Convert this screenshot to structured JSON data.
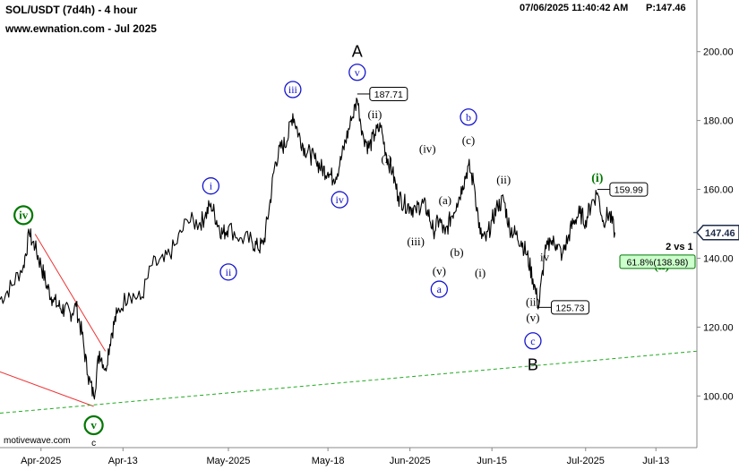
{
  "header": {
    "symbol": "SOL/USDT (7d4h) - 4 hour",
    "site": "www.ewnation.com   - Jul 2025",
    "timestamp": "07/06/2025 11:40:42 AM",
    "price_label": "P:147.46"
  },
  "watermark": "motivewave.com",
  "chart_data": {
    "type": "line",
    "title": "SOL/USDT (7d4h) - 4 hour",
    "xlabel": "",
    "ylabel": "",
    "ylim": [
      85,
      215
    ],
    "xlim": [
      "2025-03-23",
      "2025-07-20"
    ],
    "x_ticks": [
      {
        "date": "2025-03-30",
        "label": "Apr-2025"
      },
      {
        "date": "2025-04-13",
        "label": "Apr-13"
      },
      {
        "date": "2025-05-01",
        "label": "May-2025"
      },
      {
        "date": "2025-05-18",
        "label": "May-18"
      },
      {
        "date": "2025-06-01",
        "label": "Jun-2025"
      },
      {
        "date": "2025-06-15",
        "label": "Jun-15"
      },
      {
        "date": "2025-07-01",
        "label": "Jul-2025"
      },
      {
        "date": "2025-07-13",
        "label": "Jul-13"
      }
    ],
    "y_ticks": [
      100,
      120,
      140,
      160,
      180,
      200
    ],
    "y_tick_labels": [
      "100.00",
      "120.00",
      "140.00",
      "160.00",
      "180.00",
      "200.00"
    ],
    "current_price": 147.46,
    "current_price_label": "147.46",
    "series": [
      {
        "color": "#000000",
        "points": [
          [
            "2025-03-23",
            128
          ],
          [
            "2025-03-25",
            132
          ],
          [
            "2025-03-27",
            138
          ],
          [
            "2025-03-28",
            147
          ],
          [
            "2025-03-29",
            143
          ],
          [
            "2025-03-30",
            138
          ],
          [
            "2025-03-31",
            132
          ],
          [
            "2025-04-01",
            128
          ],
          [
            "2025-04-02",
            126
          ],
          [
            "2025-04-03",
            125
          ],
          [
            "2025-04-04",
            124
          ],
          [
            "2025-04-05",
            126
          ],
          [
            "2025-04-06",
            118
          ],
          [
            "2025-04-07",
            106
          ],
          [
            "2025-04-08",
            100
          ],
          [
            "2025-04-09",
            113
          ],
          [
            "2025-04-10",
            108
          ],
          [
            "2025-04-11",
            118
          ],
          [
            "2025-04-12",
            124
          ],
          [
            "2025-04-14",
            130
          ],
          [
            "2025-04-16",
            128
          ],
          [
            "2025-04-18",
            138
          ],
          [
            "2025-04-20",
            139
          ],
          [
            "2025-04-22",
            144
          ],
          [
            "2025-04-24",
            151
          ],
          [
            "2025-04-26",
            150
          ],
          [
            "2025-04-27",
            152
          ],
          [
            "2025-04-28",
            156
          ],
          [
            "2025-04-29",
            151
          ],
          [
            "2025-04-30",
            147
          ],
          [
            "2025-05-01",
            149
          ],
          [
            "2025-05-03",
            146
          ],
          [
            "2025-05-05",
            145
          ],
          [
            "2025-05-06",
            143
          ],
          [
            "2025-05-07",
            144
          ],
          [
            "2025-05-08",
            155
          ],
          [
            "2025-05-09",
            168
          ],
          [
            "2025-05-10",
            172
          ],
          [
            "2025-05-11",
            174
          ],
          [
            "2025-05-12",
            182
          ],
          [
            "2025-05-13",
            176
          ],
          [
            "2025-05-14",
            172
          ],
          [
            "2025-05-15",
            170
          ],
          [
            "2025-05-16",
            168
          ],
          [
            "2025-05-17",
            166
          ],
          [
            "2025-05-18",
            165
          ],
          [
            "2025-05-19",
            163
          ],
          [
            "2025-05-20",
            167
          ],
          [
            "2025-05-21",
            174
          ],
          [
            "2025-05-22",
            180
          ],
          [
            "2025-05-23",
            186
          ],
          [
            "2025-05-24",
            176
          ],
          [
            "2025-05-25",
            172
          ],
          [
            "2025-05-26",
            176
          ],
          [
            "2025-05-27",
            178
          ],
          [
            "2025-05-28",
            170
          ],
          [
            "2025-05-29",
            165
          ],
          [
            "2025-05-30",
            158
          ],
          [
            "2025-05-31",
            156
          ],
          [
            "2025-06-01",
            155
          ],
          [
            "2025-06-02",
            154
          ],
          [
            "2025-06-03",
            156
          ],
          [
            "2025-06-04",
            154
          ],
          [
            "2025-06-05",
            148
          ],
          [
            "2025-06-06",
            151
          ],
          [
            "2025-06-07",
            147
          ],
          [
            "2025-06-08",
            152
          ],
          [
            "2025-06-09",
            156
          ],
          [
            "2025-06-10",
            161
          ],
          [
            "2025-06-11",
            167
          ],
          [
            "2025-06-12",
            161
          ],
          [
            "2025-06-13",
            147
          ],
          [
            "2025-06-14",
            145
          ],
          [
            "2025-06-15",
            151
          ],
          [
            "2025-06-16",
            155
          ],
          [
            "2025-06-17",
            157
          ],
          [
            "2025-06-18",
            149
          ],
          [
            "2025-06-19",
            147
          ],
          [
            "2025-06-20",
            145
          ],
          [
            "2025-06-21",
            141
          ],
          [
            "2025-06-22",
            134
          ],
          [
            "2025-06-23",
            126
          ],
          [
            "2025-06-24",
            141
          ],
          [
            "2025-06-25",
            145
          ],
          [
            "2025-06-26",
            144
          ],
          [
            "2025-06-27",
            141
          ],
          [
            "2025-06-28",
            146
          ],
          [
            "2025-06-29",
            151
          ],
          [
            "2025-06-30",
            153
          ],
          [
            "2025-07-01",
            151
          ],
          [
            "2025-07-02",
            156
          ],
          [
            "2025-07-03",
            159
          ],
          [
            "2025-07-04",
            151
          ],
          [
            "2025-07-05",
            153
          ],
          [
            "2025-07-06",
            147.5
          ]
        ]
      }
    ],
    "lines": [
      {
        "name": "trendline",
        "color": "#ee3333",
        "style": "solid",
        "from": [
          "2025-03-29",
          147
        ],
        "to": [
          "2025-04-10",
          113
        ]
      },
      {
        "name": "trendline",
        "color": "#ee3333",
        "style": "solid",
        "from": [
          "2025-03-23",
          107
        ],
        "to": [
          "2025-04-08",
          97
        ]
      },
      {
        "name": "trendline",
        "color": "#22aa22",
        "style": "dashed",
        "from": [
          "2025-03-23",
          95
        ],
        "to": [
          "2025-07-20",
          113
        ]
      }
    ],
    "annotations": [
      {
        "text": "iv",
        "style": "circle",
        "color": "#007700",
        "bold": true,
        "at": [
          "2025-03-27",
          152.5
        ]
      },
      {
        "text": "v",
        "style": "circle",
        "color": "#007700",
        "bold": true,
        "at": [
          "2025-04-08",
          91.5
        ]
      },
      {
        "text": "c",
        "style": "plain-small",
        "color": "#000000",
        "at": [
          "2025-04-08",
          86.5
        ]
      },
      {
        "text": "i",
        "style": "circle",
        "color": "#1515d0",
        "at": [
          "2025-04-28",
          161
        ]
      },
      {
        "text": "ii",
        "style": "circle",
        "color": "#1515d0",
        "at": [
          "2025-05-01",
          136
        ]
      },
      {
        "text": "iii",
        "style": "circle",
        "color": "#1515d0",
        "at": [
          "2025-05-12",
          189
        ]
      },
      {
        "text": "iv",
        "style": "circle",
        "color": "#1515d0",
        "at": [
          "2025-05-20",
          157
        ]
      },
      {
        "text": "v",
        "style": "circle",
        "color": "#1515d0",
        "at": [
          "2025-05-23",
          194
        ]
      },
      {
        "text": "A",
        "style": "big",
        "color": "#000000",
        "at": [
          "2025-05-23",
          200
        ]
      },
      {
        "text": "(ii)",
        "style": "serif",
        "color": "#000000",
        "at": [
          "2025-05-26",
          182
        ]
      },
      {
        "text": "(i)",
        "style": "serif",
        "color": "#000000",
        "at": [
          "2025-05-28",
          169
        ]
      },
      {
        "text": "(iv)",
        "style": "serif",
        "color": "#000000",
        "at": [
          "2025-06-04",
          172
        ]
      },
      {
        "text": "(iii)",
        "style": "serif",
        "color": "#000000",
        "at": [
          "2025-06-02",
          145
        ]
      },
      {
        "text": "(a)",
        "style": "serif",
        "color": "#000000",
        "at": [
          "2025-06-07",
          157
        ]
      },
      {
        "text": "(b)",
        "style": "serif",
        "color": "#000000",
        "at": [
          "2025-06-09",
          142
        ]
      },
      {
        "text": "(v)",
        "style": "serif",
        "color": "#000000",
        "at": [
          "2025-06-06",
          136.5
        ]
      },
      {
        "text": "a",
        "style": "circle",
        "color": "#1515d0",
        "at": [
          "2025-06-06",
          131
        ]
      },
      {
        "text": "b",
        "style": "circle",
        "color": "#1515d0",
        "at": [
          "2025-06-11",
          181
        ]
      },
      {
        "text": "(c)",
        "style": "serif",
        "color": "#000000",
        "at": [
          "2025-06-11",
          174.5
        ]
      },
      {
        "text": "(ii)",
        "style": "serif",
        "color": "#000000",
        "at": [
          "2025-06-17",
          163
        ]
      },
      {
        "text": "(i)",
        "style": "serif",
        "color": "#000000",
        "at": [
          "2025-06-13",
          136
        ]
      },
      {
        "text": "iv",
        "style": "serif",
        "color": "#000000",
        "at": [
          "2025-06-24",
          140.5
        ]
      },
      {
        "text": "(ii)",
        "style": "serif",
        "color": "#000000",
        "at": [
          "2025-06-22",
          127.5
        ]
      },
      {
        "text": "(v)",
        "style": "serif",
        "color": "#000000",
        "at": [
          "2025-06-22",
          123
        ]
      },
      {
        "text": "c",
        "style": "circle",
        "color": "#1515d0",
        "at": [
          "2025-06-22",
          116
        ]
      },
      {
        "text": "B",
        "style": "big",
        "color": "#000000",
        "at": [
          "2025-06-22",
          109
        ]
      },
      {
        "text": "(i)",
        "style": "serif-bold",
        "color": "#007700",
        "at": [
          "2025-07-03",
          163.5
        ]
      },
      {
        "text": "(ii)",
        "style": "serif-bold",
        "color": "#007700",
        "at": [
          "2025-07-14",
          138
        ]
      },
      {
        "text": "2 vs 1",
        "style": "plain-bold",
        "color": "#000000",
        "at": [
          "2025-07-17",
          143.5
        ]
      }
    ],
    "price_callouts": [
      {
        "label": "187.71",
        "price": 187.71,
        "at": [
          "2025-05-23",
          187.71
        ]
      },
      {
        "label": "159.99",
        "price": 159.99,
        "at": [
          "2025-07-03",
          159.99
        ]
      },
      {
        "label": "125.73",
        "price": 125.73,
        "at": [
          "2025-06-23",
          125.73
        ]
      }
    ],
    "fib_label": {
      "text": "61.8%(138.98)",
      "price": 138.98,
      "color": "#007700",
      "bg": "#ccffcc"
    }
  }
}
